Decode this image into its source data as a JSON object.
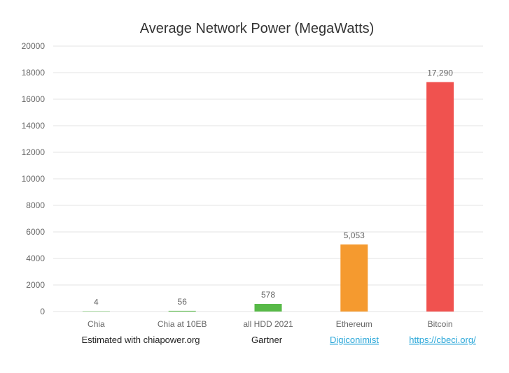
{
  "chart_data": {
    "type": "bar",
    "title": "Average Network Power (MegaWatts)",
    "xlabel": "",
    "ylabel": "",
    "ylim": [
      0,
      20000
    ],
    "yticks": [
      0,
      2000,
      4000,
      6000,
      8000,
      10000,
      12000,
      14000,
      16000,
      18000,
      20000
    ],
    "grid": true,
    "categories": [
      "Chia",
      "Chia at 10EB",
      "all HDD 2021",
      "Ethereum",
      "Bitcoin"
    ],
    "values": [
      4,
      56,
      578,
      5053,
      17290
    ],
    "data_labels": [
      "4",
      "56",
      "578",
      "5,053",
      "17,290"
    ],
    "colors": [
      "#57b947",
      "#57b947",
      "#57b947",
      "#f59a2f",
      "#f0524f"
    ]
  },
  "sources": [
    {
      "text": "Estimated with chiapower.org",
      "link": false
    },
    {
      "text": "Gartner",
      "link": false
    },
    {
      "text": "Digiconimist ",
      "link": true
    },
    {
      "text": "https://cbeci.org/ ",
      "link": true
    }
  ]
}
